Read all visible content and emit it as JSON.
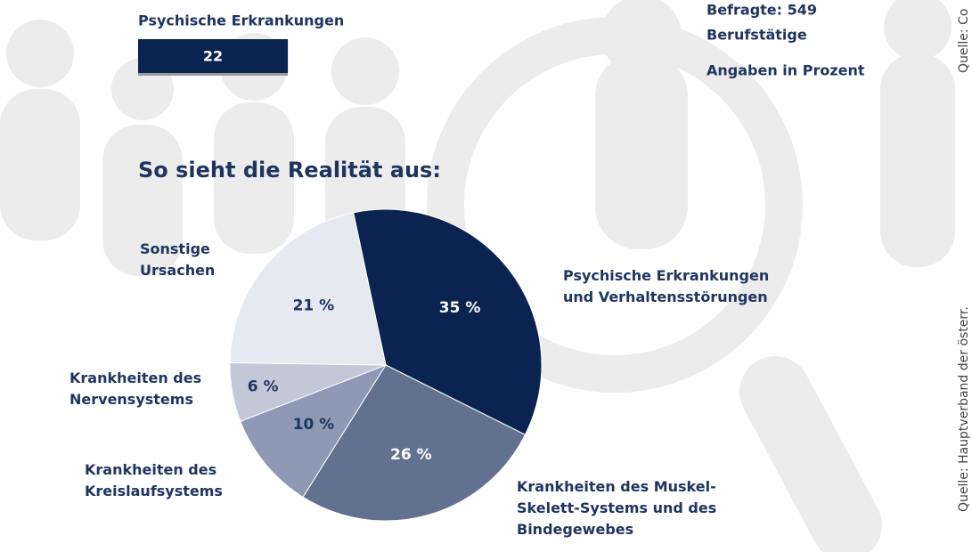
{
  "header": {
    "bar_label": "Psychische Erkrankungen",
    "info": {
      "respondents": "Befragte: 549",
      "group": "Berufstätige",
      "unit": "Angaben in Prozent"
    },
    "sources": [
      "Quelle: Hauptverband der österr.",
      "Quelle: Co"
    ]
  },
  "chart_data": [
    {
      "type": "bar",
      "categories": [
        "Psychische Erkrankungen"
      ],
      "values": [
        22
      ],
      "color": "#0a2350"
    },
    {
      "type": "pie",
      "title": "So sieht die Realität aus:",
      "categories": [
        "Psychische Erkrankungen und Verhaltensstörungen",
        "Krankheiten des Muskel-Skelett-Systems und des Bindegewebes",
        "Krankheiten des Kreislaufsystems",
        "Krankheiten des Nervensystems",
        "Sonstige Ursachen"
      ],
      "values": [
        35,
        26,
        10,
        6,
        21
      ],
      "value_labels": [
        "35 %",
        "26 %",
        "10 %",
        "6 %",
        "21 %"
      ],
      "colors": [
        "#0a2350",
        "#637191",
        "#8d99b5",
        "#c3c8d8",
        "#e6e9f0"
      ]
    }
  ]
}
